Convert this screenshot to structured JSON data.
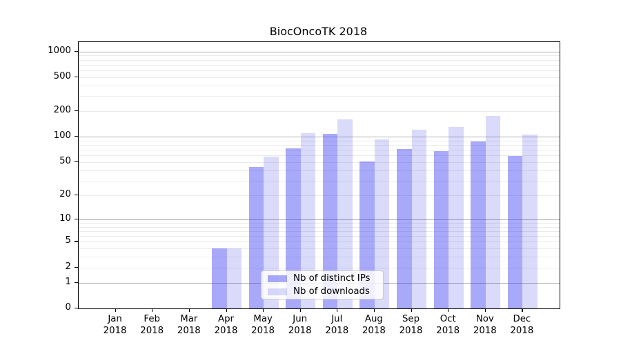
{
  "chart_data": {
    "type": "bar",
    "title": "BiocOncoTK 2018",
    "categories": [
      "Jan 2018",
      "Feb 2018",
      "Mar 2018",
      "Apr 2018",
      "May 2018",
      "Jun 2018",
      "Jul 2018",
      "Aug 2018",
      "Sep 2018",
      "Oct 2018",
      "Nov 2018",
      "Dec 2018"
    ],
    "series": [
      {
        "name": "Nb of distinct IPs",
        "color": "rgba(50,50,243,0.42)",
        "values": [
          0,
          0,
          0,
          4,
          44,
          73,
          108,
          51,
          72,
          68,
          89,
          59
        ]
      },
      {
        "name": "Nb of downloads",
        "color": "rgba(50,50,227,0.18)",
        "values": [
          0,
          0,
          0,
          4,
          58,
          110,
          162,
          93,
          122,
          130,
          177,
          106
        ]
      }
    ],
    "xlabel": "",
    "ylabel": "",
    "yscale": "log10(value+1)",
    "yticks": [
      0,
      1,
      2,
      5,
      10,
      20,
      50,
      100,
      200,
      500,
      1000
    ],
    "ytick_labels": [
      "0",
      "1",
      "2",
      "5",
      "10",
      "20",
      "50",
      "100",
      "200",
      "500",
      "1000"
    ],
    "minor_gridline_values": [
      2,
      3,
      4,
      5,
      6,
      7,
      8,
      9,
      20,
      30,
      40,
      50,
      60,
      70,
      80,
      90,
      200,
      300,
      400,
      500,
      600,
      700,
      800,
      900
    ],
    "major_gridline_values": [
      1,
      10,
      100,
      1000
    ],
    "ylim": [
      0,
      1290
    ],
    "grid": "horizontal major+minor",
    "legend_position": "inside lower-center"
  },
  "colors": {
    "grid_major": "#b0b0b0",
    "grid_minor": "#ebebeb",
    "spine": "#000000",
    "text": "#000000",
    "legend_border": "#cccccc",
    "background": "#ffffff"
  }
}
